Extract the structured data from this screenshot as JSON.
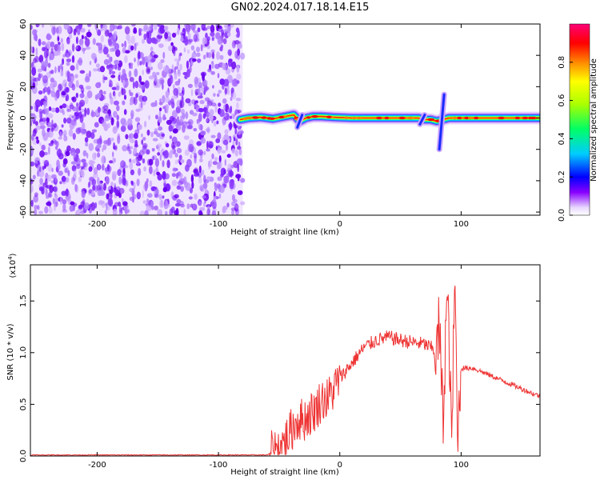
{
  "title": "GN02.2024.017.18.14.E15",
  "chart_data": [
    {
      "type": "heatmap",
      "panel": "spectrogram",
      "xlabel": "Height of straight line (km)",
      "ylabel": "Frequency (Hz)",
      "xlim": [
        -255,
        165
      ],
      "ylim": [
        -62,
        60
      ],
      "x_ticks": [
        -200,
        -100,
        0,
        100
      ],
      "y_ticks": [
        -60,
        -40,
        -20,
        0,
        20,
        40,
        60
      ],
      "noise_region_x": [
        -255,
        -80
      ],
      "ridge": {
        "x": [
          -82,
          -75,
          -65,
          -55,
          -45,
          -38,
          -33,
          -28,
          -22,
          -15,
          -5,
          10,
          25,
          40,
          55,
          65,
          70,
          75,
          80,
          85,
          90,
          110,
          130,
          150,
          165
        ],
        "y": [
          -1,
          0,
          0.5,
          -0.5,
          1,
          2,
          -2,
          0,
          1,
          1,
          0.5,
          0,
          0,
          0,
          0,
          0,
          -1,
          -1,
          -2,
          -1,
          0,
          0,
          0,
          0,
          0
        ]
      },
      "features": [
        {
          "x": -33,
          "y_range": [
            -6,
            2
          ]
        },
        {
          "x": 68,
          "y_range": [
            -4,
            2
          ]
        },
        {
          "x": 84,
          "y_range": [
            -20,
            15
          ]
        }
      ],
      "colorbar": {
        "label": "Normalized spectral amplitude",
        "range": [
          0,
          1
        ],
        "ticks": [
          0.0,
          0.2,
          0.4,
          0.6,
          0.8
        ],
        "tick_labels": [
          "0.0",
          "0.2",
          "0.4",
          "0.6",
          "0.8"
        ]
      },
      "x_tick_labels": [
        "-200",
        "-100",
        "0",
        "100"
      ],
      "y_tick_labels": [
        "-60",
        "-40",
        "-20",
        "0",
        "20",
        "40",
        "60"
      ]
    },
    {
      "type": "line",
      "panel": "snr",
      "xlabel": "Height of straight line (km)",
      "ylabel": "SNR (10 * v/v)",
      "scale_label": "(x10",
      "scale_exp": "4",
      "scale_close": ")",
      "xlim": [
        -255,
        165
      ],
      "ylim": [
        0,
        1.85
      ],
      "x_ticks": [
        -200,
        -100,
        0,
        100
      ],
      "y_ticks": [
        0.0,
        0.5,
        1.0,
        1.5
      ],
      "x_tick_labels": [
        "-200",
        "-100",
        "0",
        "100"
      ],
      "y_tick_labels": [
        "0.0",
        "0.5",
        "1.0",
        "1.5"
      ],
      "color": "#ee3333",
      "series": [
        {
          "x": [
            -255,
            -200,
            -150,
            -100,
            -60,
            -52,
            -45,
            -40,
            -35,
            -30,
            -25,
            -20,
            -15,
            -10,
            -5,
            0,
            10,
            20,
            30,
            40,
            50,
            60,
            70,
            75,
            80,
            82,
            85,
            88,
            90,
            92,
            95,
            97,
            100,
            110,
            120,
            130,
            140,
            150,
            160,
            165
          ],
          "y": [
            0.01,
            0.01,
            0.01,
            0.01,
            0.01,
            0.05,
            0.15,
            0.25,
            0.35,
            0.35,
            0.4,
            0.45,
            0.55,
            0.55,
            0.65,
            0.75,
            0.9,
            1.05,
            1.12,
            1.15,
            1.12,
            1.1,
            1.08,
            1.05,
            1.0,
            1.3,
            0.3,
            1.5,
            1.2,
            0.1,
            1.7,
            0.1,
            0.85,
            0.85,
            0.8,
            0.75,
            0.7,
            0.65,
            0.6,
            0.58
          ]
        }
      ]
    }
  ]
}
